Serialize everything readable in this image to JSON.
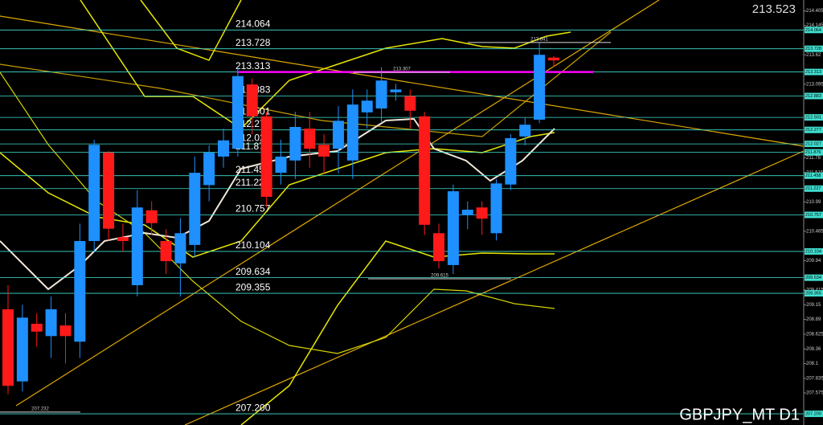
{
  "chart_data": {
    "type": "candlestick",
    "title": "GBPJPY_MT D1",
    "current_price": 213.523,
    "ylim": [
      207.0,
      214.6
    ],
    "yticks": [
      214.405,
      214.145,
      213.62,
      213.095,
      211.78,
      211.515,
      210.99,
      210.465,
      209.94,
      209.415,
      209.15,
      208.89,
      208.625,
      208.36,
      208.1,
      207.835,
      207.575
    ],
    "levels": [
      214.064,
      213.728,
      213.313,
      212.883,
      212.501,
      212.277,
      212.027,
      211.876,
      211.458,
      211.227,
      210.757,
      210.104,
      209.634,
      209.355,
      {
        "value": 207.2,
        "label": "207.200"
      }
    ],
    "price_labels": [
      213.841,
      213.307,
      209.615,
      207.232
    ],
    "bull_color": "#1e90ff",
    "bear_color": "#ff1a1a",
    "level_color": "#40e0d0",
    "highlight_color": "#ff00ff",
    "open": [
      209.07,
      207.78,
      208.81,
      208.59,
      208.78,
      208.49,
      210.29,
      211.87,
      210.36,
      209.5,
      210.84,
      210.29,
      209.89,
      210.22,
      211.29,
      211.8,
      211.94,
      213.09,
      212.52,
      211.51,
      211.73,
      212.3,
      212.01,
      211.94,
      211.73,
      212.59,
      212.66,
      212.95,
      212.88,
      212.52,
      210.43,
      209.86,
      210.75,
      210.89,
      210.43,
      211.3,
      212.16,
      212.46,
      213.57
    ],
    "high": [
      209.5,
      209.15,
      209.0,
      209.3,
      209.0,
      210.6,
      212.1,
      211.9,
      210.6,
      211.2,
      211.0,
      210.5,
      210.7,
      211.8,
      212.0,
      212.3,
      213.4,
      213.2,
      212.6,
      212.1,
      212.6,
      212.6,
      212.2,
      212.7,
      213.0,
      213.0,
      213.4,
      213.1,
      213.0,
      212.6,
      210.6,
      211.3,
      211.0,
      211.0,
      211.4,
      212.2,
      212.5,
      213.84,
      213.6
    ],
    "low": [
      207.55,
      207.6,
      208.4,
      208.2,
      208.1,
      208.2,
      210.1,
      210.3,
      210.1,
      209.3,
      210.4,
      209.7,
      209.3,
      210.0,
      211.0,
      211.6,
      211.8,
      212.2,
      210.9,
      211.3,
      211.4,
      211.6,
      211.5,
      211.5,
      211.4,
      212.3,
      212.4,
      212.8,
      212.3,
      210.4,
      209.8,
      209.7,
      210.5,
      210.4,
      210.3,
      211.2,
      212.0,
      212.4,
      213.4
    ],
    "close": [
      207.7,
      208.92,
      208.67,
      209.07,
      208.59,
      210.29,
      212.01,
      210.51,
      210.29,
      210.89,
      210.61,
      209.93,
      210.43,
      211.51,
      211.87,
      212.09,
      213.24,
      212.52,
      211.08,
      211.8,
      212.33,
      211.94,
      211.8,
      212.44,
      212.73,
      212.8,
      213.16,
      213.0,
      212.62,
      210.58,
      209.93,
      211.18,
      210.85,
      210.69,
      211.32,
      212.13,
      212.37,
      213.62,
      213.52
    ]
  }
}
